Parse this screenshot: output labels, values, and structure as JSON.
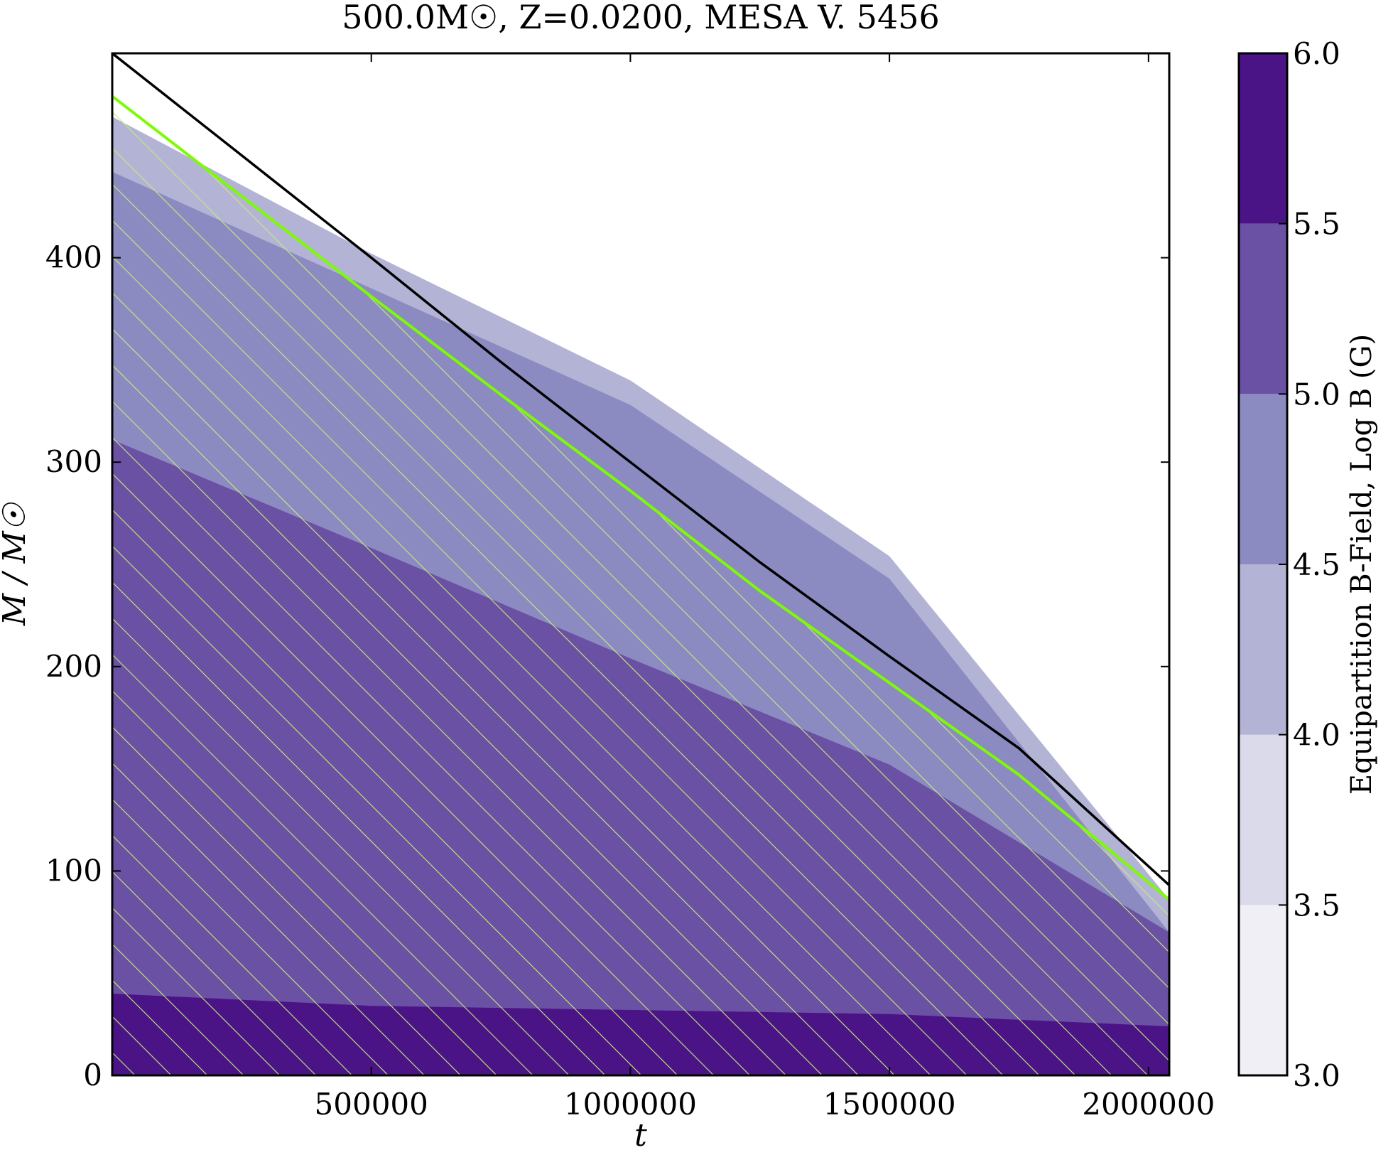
{
  "chart_data": {
    "type": "contour",
    "title": "500.0M☉, Z=0.0200, MESA V. 5456",
    "xlabel": "t",
    "ylabel": "M / M☉",
    "xlim": [
      0,
      2040000
    ],
    "ylim": [
      0,
      500
    ],
    "xticks": [
      "500000",
      "1000000",
      "1500000",
      "2000000"
    ],
    "yticks": [
      "0",
      "100",
      "200",
      "300",
      "400"
    ],
    "xtick_values": [
      500000,
      1000000,
      1500000,
      2000000
    ],
    "ytick_values": [
      0,
      100,
      200,
      300,
      400
    ],
    "colorbar": {
      "label": "Equipartition B-Field, Log B (G)",
      "range": [
        3.0,
        6.0
      ],
      "levels": [
        3.0,
        3.5,
        4.0,
        4.5,
        5.0,
        5.5,
        6.0
      ],
      "tick_labels": [
        "3.0",
        "3.5",
        "4.0",
        "4.5",
        "5.0",
        "5.5",
        "6.0"
      ],
      "colors": [
        "#f1eff6",
        "#dadaea",
        "#b3b3d5",
        "#8c8bc1",
        "#6a51a3",
        "#4a1486"
      ]
    },
    "total_mass_line": {
      "color": "#000000",
      "t": [
        0,
        250000,
        500000,
        750000,
        1000000,
        1250000,
        1500000,
        1750000,
        2040000
      ],
      "M": [
        500,
        450,
        400,
        349,
        300,
        251,
        205,
        160,
        93
      ]
    },
    "convective_boundary": {
      "color": "#7cfc00",
      "t": [
        0,
        250000,
        500000,
        750000,
        1000000,
        1250000,
        1500000,
        1750000,
        2040000
      ],
      "M": [
        479,
        430,
        381,
        333,
        286,
        237,
        192,
        147,
        86
      ]
    },
    "regions": [
      {
        "level": "5.5-6.0",
        "t": [
          0,
          500000,
          1000000,
          1500000,
          2040000
        ],
        "M_top": [
          40,
          34,
          32,
          30,
          24
        ]
      },
      {
        "level": "5.0-5.5",
        "t": [
          0,
          500000,
          1000000,
          1500000,
          2040000
        ],
        "M_top": [
          311,
          258,
          204,
          152,
          70
        ]
      },
      {
        "level": "4.5-5.0",
        "t": [
          0,
          500000,
          1000000,
          1500000,
          2040000
        ],
        "M_top": [
          442,
          385,
          328,
          243,
          70
        ]
      },
      {
        "level": "4.0-4.5",
        "t": [
          0,
          500000,
          1000000,
          1500000,
          2040000
        ],
        "M_top": [
          469,
          402,
          340,
          254,
          86
        ]
      }
    ]
  }
}
